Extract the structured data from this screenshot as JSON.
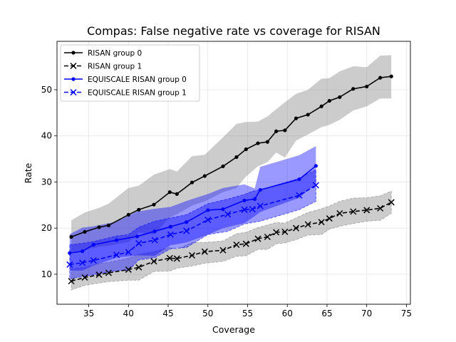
{
  "chart_data": {
    "type": "line",
    "title": "Compas: False negative rate vs coverage for RISAN",
    "xlabel": "Coverage",
    "ylabel": "Rate",
    "xlim": [
      31,
      75.5
    ],
    "ylim": [
      3.5,
      60.5
    ],
    "xticks": [
      35,
      40,
      45,
      50,
      55,
      60,
      65,
      70,
      75
    ],
    "yticks": [
      10,
      20,
      30,
      40,
      50
    ],
    "grid": true,
    "legend_position": "top-left",
    "series": [
      {
        "name": "RISAN group 0",
        "color": "#000000",
        "band_color": "#808080",
        "linestyle": "solid",
        "marker": "dot",
        "x": [
          32.8,
          34.5,
          36.3,
          37.5,
          40.0,
          41.3,
          43.2,
          45.2,
          46.1,
          48.0,
          49.6,
          51.9,
          53.6,
          54.8,
          56.3,
          57.5,
          58.6,
          59.7,
          61.1,
          62.6,
          64.3,
          65.3,
          66.6,
          68.3,
          70.0,
          71.7,
          73.1
        ],
        "y": [
          18.1,
          19.2,
          20.2,
          20.6,
          22.9,
          24.0,
          25.1,
          27.8,
          27.4,
          29.9,
          31.3,
          33.4,
          35.4,
          37.1,
          38.4,
          38.7,
          41.0,
          41.2,
          43.8,
          44.6,
          46.4,
          47.6,
          48.4,
          50.2,
          50.7,
          52.6,
          52.9
        ],
        "upper": [
          21.7,
          23.4,
          24.4,
          25.3,
          28.7,
          29.2,
          31.6,
          32.8,
          32.3,
          35.6,
          35.9,
          39.7,
          42.6,
          43.0,
          43.1,
          44.2,
          45.8,
          47.3,
          49.1,
          50.0,
          52.4,
          52.5,
          54.0,
          55.1,
          54.9,
          57.4,
          57.5
        ],
        "lower": [
          14.9,
          15.3,
          16.0,
          16.2,
          17.0,
          19.1,
          18.6,
          22.3,
          23.0,
          24.9,
          25.8,
          27.8,
          28.7,
          31.2,
          33.4,
          34.3,
          36.4,
          35.3,
          39.0,
          40.3,
          41.9,
          42.4,
          43.5,
          45.5,
          46.4,
          48.1,
          48.1
        ]
      },
      {
        "name": "RISAN group 1",
        "color": "#000000",
        "band_color": "#808080",
        "linestyle": "dashed",
        "marker": "x",
        "x": [
          32.8,
          34.5,
          36.3,
          37.5,
          40.0,
          41.3,
          43.2,
          45.2,
          46.1,
          48.0,
          49.6,
          51.9,
          53.6,
          54.8,
          56.3,
          57.5,
          58.6,
          59.7,
          61.1,
          62.6,
          64.3,
          65.3,
          66.6,
          68.3,
          70.0,
          71.7,
          73.1
        ],
        "y": [
          8.5,
          9.3,
          9.9,
          10.3,
          11.0,
          11.5,
          12.8,
          13.5,
          13.4,
          14.1,
          14.9,
          15.2,
          16.4,
          16.6,
          17.7,
          18.1,
          19.1,
          19.2,
          20.0,
          20.8,
          21.3,
          22.1,
          23.2,
          23.6,
          23.9,
          24.3,
          25.6
        ],
        "upper": [
          11.2,
          11.5,
          12.3,
          12.6,
          13.5,
          14.3,
          14.9,
          15.8,
          15.4,
          16.9,
          16.9,
          17.2,
          18.8,
          19.1,
          20.1,
          20.7,
          21.2,
          21.1,
          22.2,
          23.4,
          24.2,
          24.8,
          25.8,
          26.5,
          26.6,
          27.0,
          28.0
        ],
        "lower": [
          6.6,
          7.6,
          8.1,
          8.4,
          8.7,
          8.7,
          10.6,
          10.7,
          11.3,
          11.8,
          12.4,
          12.8,
          13.9,
          14.0,
          15.4,
          15.4,
          16.6,
          16.8,
          17.5,
          18.5,
          18.6,
          19.8,
          20.4,
          21.0,
          21.5,
          21.7,
          23.2
        ]
      },
      {
        "name": "EQUISCALE RISAN group 0",
        "color": "#0000ff",
        "band_color": "#0000ff",
        "linestyle": "solid",
        "marker": "dot",
        "x": [
          32.6,
          34.2,
          35.6,
          38.5,
          41.1,
          43.3,
          45.3,
          47.3,
          50.0,
          51.9,
          54.6,
          55.9,
          56.6,
          61.5,
          63.6
        ],
        "y": [
          14.6,
          15.0,
          16.4,
          17.4,
          18.2,
          19.3,
          20.3,
          21.3,
          23.9,
          24.1,
          26.0,
          26.3,
          28.3,
          30.6,
          33.5
        ],
        "upper": [
          18.7,
          20.1,
          20.4,
          21.4,
          23.6,
          24.2,
          24.6,
          25.9,
          27.4,
          28.7,
          29.5,
          28.6,
          33.3,
          35.8,
          37.8
        ],
        "lower": [
          10.8,
          10.8,
          11.9,
          13.6,
          14.1,
          14.0,
          16.3,
          16.9,
          18.6,
          20.0,
          21.1,
          22.6,
          23.5,
          26.6,
          29.6
        ]
      },
      {
        "name": "EQUISCALE RISAN group 1",
        "color": "#0000ff",
        "band_color": "#0000ff",
        "linestyle": "dashed",
        "marker": "x",
        "x": [
          32.6,
          34.2,
          35.6,
          38.5,
          40.0,
          41.3,
          43.3,
          45.3,
          47.3,
          50.0,
          52.5,
          54.6,
          55.6,
          56.6,
          61.5,
          63.6
        ],
        "y": [
          12.1,
          12.5,
          13.0,
          14.2,
          14.8,
          16.7,
          17.4,
          18.6,
          19.4,
          21.8,
          23.0,
          24.0,
          24.1,
          24.8,
          27.1,
          29.3
        ],
        "upper": [
          16.4,
          16.7,
          17.1,
          18.3,
          18.6,
          20.2,
          21.5,
          22.2,
          22.9,
          25.3,
          26.3,
          27.3,
          28.0,
          28.3,
          30.8,
          32.7
        ],
        "lower": [
          9.0,
          9.5,
          9.9,
          10.8,
          10.8,
          13.1,
          13.6,
          15.5,
          15.8,
          18.6,
          19.3,
          20.9,
          21.2,
          21.5,
          24.0,
          25.8
        ]
      }
    ]
  }
}
